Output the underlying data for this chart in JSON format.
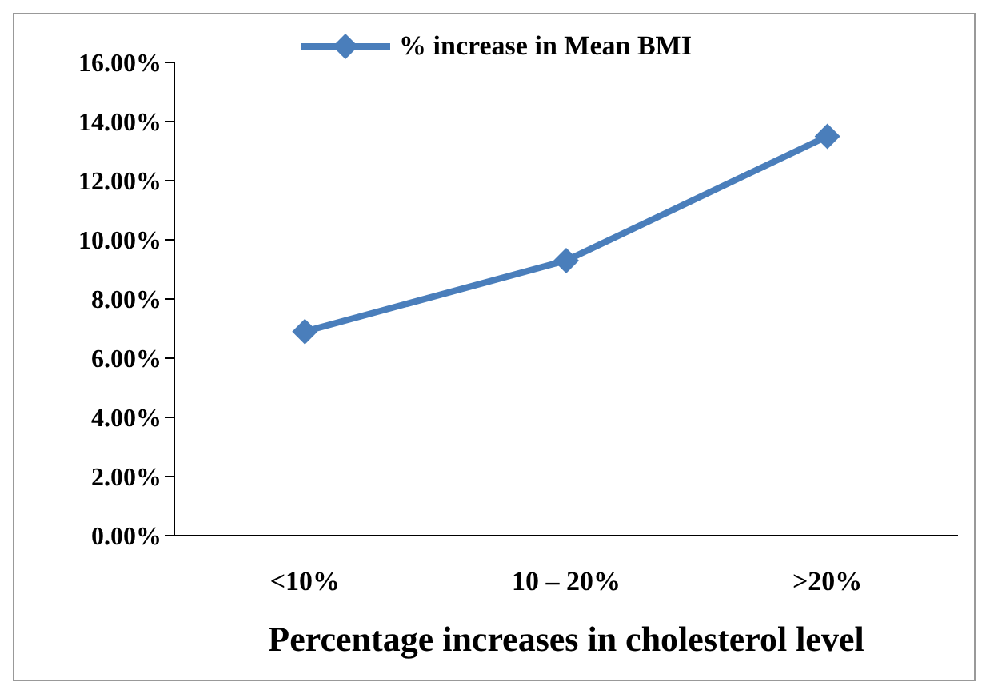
{
  "chart_data": {
    "type": "line",
    "xlabel": "Percentage increases in cholesterol level",
    "categories": [
      "<10%",
      "10 – 20%",
      ">20%"
    ],
    "series": [
      {
        "name": "% increase in Mean BMI",
        "color": "#4a7ebb",
        "values": [
          6.9,
          9.3,
          13.5
        ]
      }
    ],
    "ylim": [
      0,
      16
    ],
    "yticks": [
      {
        "value": 0,
        "label": "0.00%"
      },
      {
        "value": 2,
        "label": "2.00%"
      },
      {
        "value": 4,
        "label": "4.00%"
      },
      {
        "value": 6,
        "label": "6.00%"
      },
      {
        "value": 8,
        "label": "8.00%"
      },
      {
        "value": 10,
        "label": "10.00%"
      },
      {
        "value": 12,
        "label": "12.00%"
      },
      {
        "value": 14,
        "label": "14.00%"
      },
      {
        "value": 16,
        "label": "16.00%"
      }
    ],
    "legend": "top",
    "marker": "diamond",
    "line_style": "solid",
    "grid": false
  }
}
